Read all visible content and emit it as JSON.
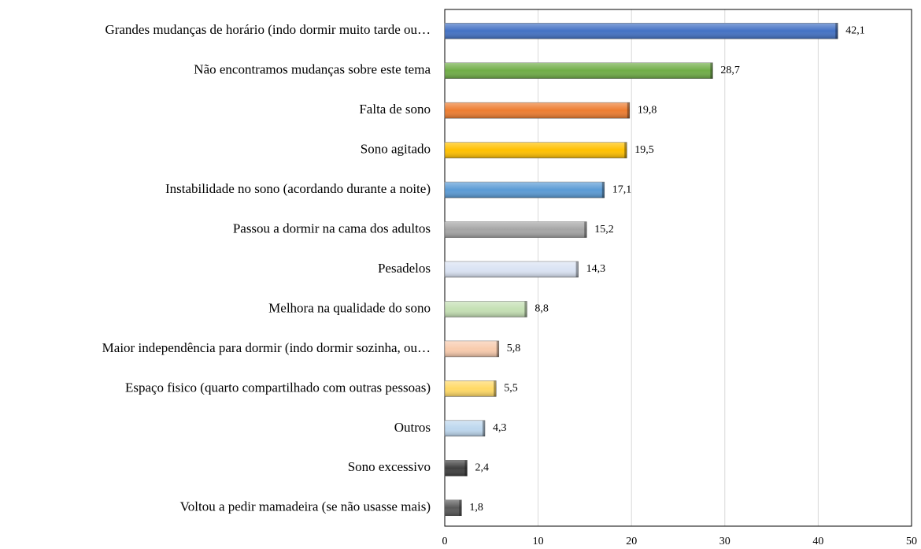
{
  "chart_data": {
    "type": "bar",
    "orientation": "horizontal",
    "categories": [
      "Grandes mudanças de horário (indo dormir muito tarde ou…",
      "Não encontramos mudanças sobre este tema",
      "Falta de sono",
      "Sono agitado",
      "Instabilidade no sono (acordando durante a noite)",
      "Passou a dormir na cama dos adultos",
      "Pesadelos",
      "Melhora na qualidade do sono",
      "Maior independência para dormir (indo dormir sozinha, ou…",
      "Espaço fisico (quarto compartilhado com outras pessoas)",
      "Outros",
      "Sono excessivo",
      "Voltou a pedir mamadeira (se não usasse mais)"
    ],
    "values": [
      42.1,
      28.7,
      19.8,
      19.5,
      17.1,
      15.2,
      14.3,
      8.8,
      5.8,
      5.5,
      4.3,
      2.4,
      1.8
    ],
    "value_labels": [
      "42,1",
      "28,7",
      "19,8",
      "19,5",
      "17,1",
      "15,2",
      "14,3",
      "8,8",
      "5,8",
      "5,5",
      "4,3",
      "2,4",
      "1,8"
    ],
    "colors": [
      "#4472c4",
      "#70ad47",
      "#ed7d31",
      "#ffc000",
      "#5b9bd5",
      "#a5a5a5",
      "#dae3f3",
      "#c5e0b4",
      "#f8cbad",
      "#ffd966",
      "#bdd7ee",
      "#404040",
      "#595959"
    ],
    "xlim": [
      0,
      50
    ],
    "xticks": [
      0,
      10,
      20,
      30,
      40,
      50
    ],
    "grid": true
  }
}
